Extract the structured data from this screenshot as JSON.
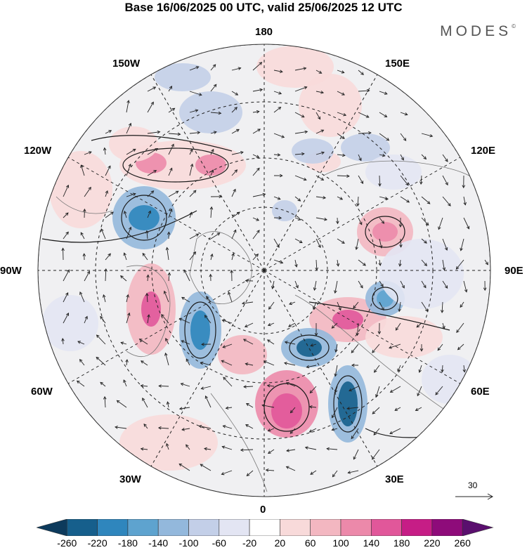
{
  "title": "Base 16/06/2025 00 UTC, valid 25/06/2025 12 UTC",
  "brand": {
    "name": "MODES",
    "mark": "©"
  },
  "longitude_labels": {
    "top": "180",
    "bottom": "0",
    "left": "90W",
    "right": "90E",
    "upper_left": "150W",
    "upper_right": "150E",
    "mid_upper_left": "120W",
    "mid_upper_right": "120E",
    "mid_lower_left": "60W",
    "mid_lower_right": "60E",
    "lower_left": "30W",
    "lower_right": "30E"
  },
  "reference_vector": {
    "label": "30"
  },
  "colorbar": {
    "ticks": [
      "-260",
      "-220",
      "-180",
      "-140",
      "-100",
      "-60",
      "-20",
      "20",
      "60",
      "100",
      "140",
      "180",
      "220",
      "260"
    ],
    "colors": [
      "#0d3a5c",
      "#165f8c",
      "#2f86bd",
      "#5ea3cf",
      "#93b8dc",
      "#c3cfe8",
      "#e3e5f3",
      "#ffffff",
      "#f8dada",
      "#f3b7c1",
      "#ec89aa",
      "#e1579a",
      "#c61d86",
      "#8e0b7a",
      "#5a0f6e"
    ]
  }
}
